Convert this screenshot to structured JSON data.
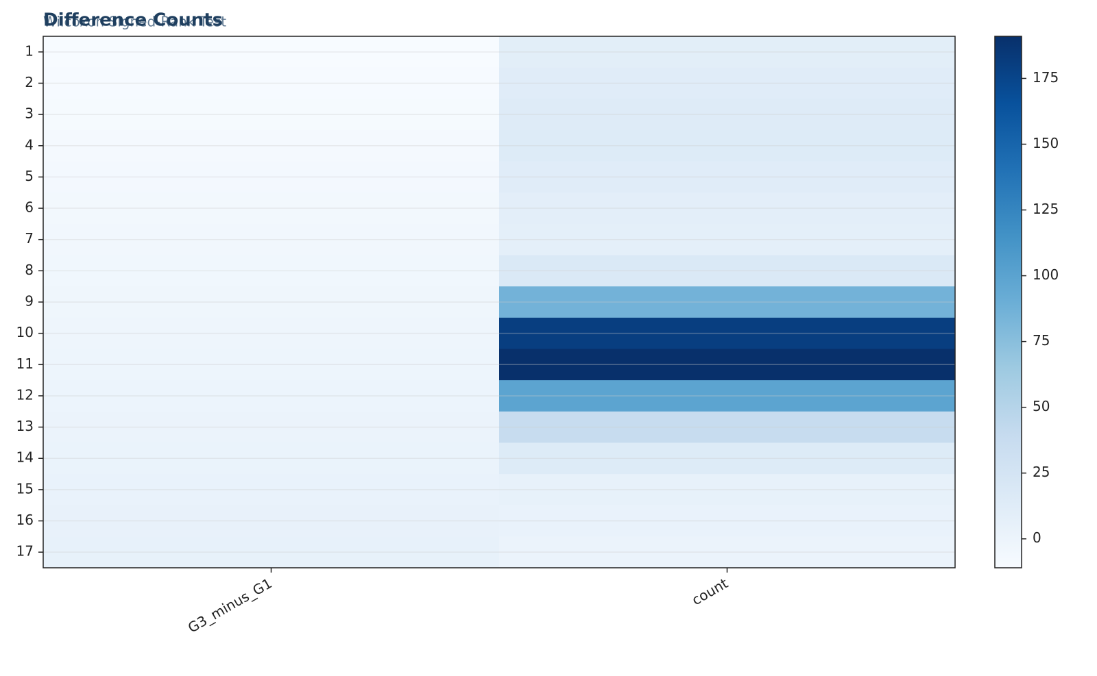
{
  "chart_data": {
    "type": "heatmap",
    "title": "Difference Counts",
    "subtitle": "Wilcoxon Signed-Rank Test",
    "categories": [
      "1",
      "2",
      "3",
      "4",
      "5",
      "6",
      "7",
      "8",
      "9",
      "10",
      "11",
      "12",
      "13",
      "14",
      "15",
      "16",
      "17"
    ],
    "series": [
      {
        "name": "G3_minus_G1",
        "values": [
          -11,
          -10,
          -9,
          -8,
          -7,
          -6,
          -5,
          -4,
          -3,
          -2,
          -1,
          0,
          1,
          2,
          3,
          4,
          5
        ]
      },
      {
        "name": "count",
        "values": [
          10,
          12,
          14,
          15,
          12,
          9,
          8,
          18,
          86,
          180,
          191,
          99,
          38,
          15,
          5,
          3,
          1
        ]
      }
    ],
    "colors": [
      "#f7fbff",
      "#deebf7",
      "#c6dbef",
      "#9ecae1",
      "#6baed6",
      "#4292c6",
      "#2171b5",
      "#08519c",
      "#08306b"
    ],
    "clim": [
      -11,
      191
    ],
    "cticks": [
      0,
      25,
      50,
      75,
      100,
      125,
      150,
      175
    ]
  }
}
